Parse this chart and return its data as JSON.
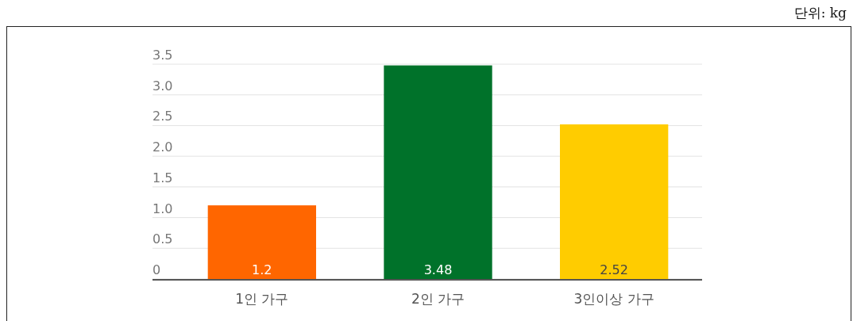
{
  "chart_data": {
    "type": "bar",
    "categories": [
      "1인 가구",
      "2인 가구",
      "3인이상 가구"
    ],
    "values": [
      1.2,
      3.48,
      2.52
    ],
    "colors": [
      "#ff6600",
      "#00722a",
      "#ffcc00"
    ],
    "ylim": [
      0,
      3.5
    ],
    "yticks": [
      0,
      0.5,
      {
        "value": 1,
        "label": "1.0"
      },
      1.5,
      {
        "value": 2,
        "label": "2.0"
      },
      2.5,
      {
        "value": 3,
        "label": "3.0"
      },
      3.5
    ],
    "grid": "y",
    "data_labels": true,
    "annotations": [
      "단위: kg"
    ]
  }
}
